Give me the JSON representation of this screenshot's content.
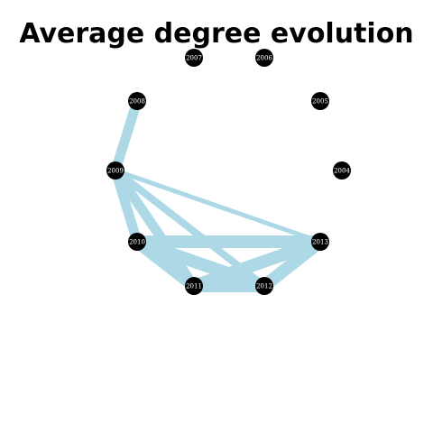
{
  "title": "Average degree evolution",
  "colors": {
    "edge": "#add8e6",
    "node": "#000000",
    "node_label": "#ffffff",
    "background": "#ffffff"
  },
  "graph": {
    "nodes": [
      "2004",
      "2005",
      "2006",
      "2007",
      "2008",
      "2009",
      "2010",
      "2011",
      "2012",
      "2013"
    ],
    "edges": [
      {
        "from": "2008",
        "to": "2009",
        "weight": 3
      },
      {
        "from": "2009",
        "to": "2013",
        "weight": 1
      },
      {
        "from": "2009",
        "to": "2010",
        "weight": 3
      },
      {
        "from": "2009",
        "to": "2011",
        "weight": 3
      },
      {
        "from": "2009",
        "to": "2012",
        "weight": 2
      },
      {
        "from": "2010",
        "to": "2013",
        "weight": 4
      },
      {
        "from": "2010",
        "to": "2011",
        "weight": 4
      },
      {
        "from": "2010",
        "to": "2012",
        "weight": 4
      },
      {
        "from": "2011",
        "to": "2013",
        "weight": 4
      },
      {
        "from": "2011",
        "to": "2012",
        "weight": 4
      },
      {
        "from": "2012",
        "to": "2013",
        "weight": 4
      }
    ]
  }
}
